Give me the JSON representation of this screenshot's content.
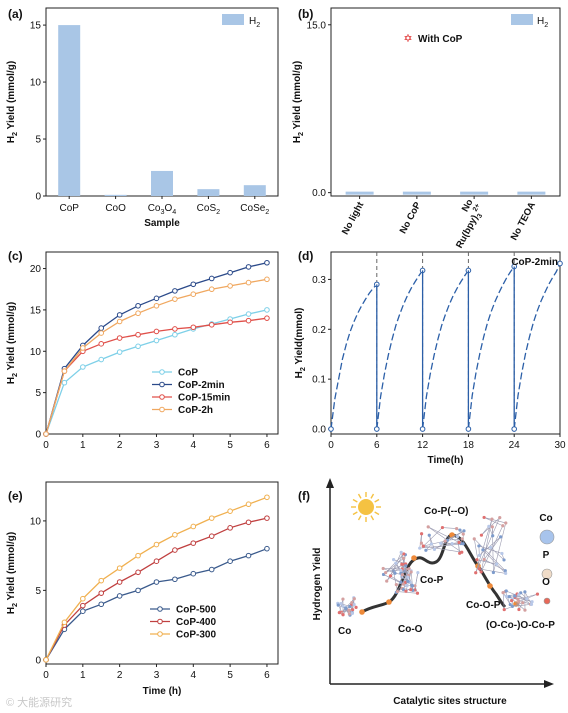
{
  "colors": {
    "bar": "#a9c6e6",
    "CoP": "#7ed0e8",
    "CoP-2min": "#2b4a8a",
    "CoP-15min": "#e0504a",
    "CoP-2h": "#f0a860",
    "d_line": "#2b5fa8",
    "CoP-500": "#3a5a8c",
    "CoP-400": "#c04040",
    "CoP-300": "#f0b050",
    "f_curve": "#333333",
    "f_dot": "#ee8a3a",
    "sun": "#f5c242"
  },
  "watermark": "© 大能源研究",
  "chart_data": [
    {
      "id": "a",
      "panel_label": "(a)",
      "type": "bar",
      "ylabel": "H₂ Yield (mmol/g)",
      "xlabel": "Sample",
      "legend": "H₂",
      "legend_position": "top-right",
      "categories": [
        "CoP",
        "CoO",
        "Co₃O₄",
        "CoS₂",
        "CoSe₂"
      ],
      "values": [
        15.0,
        0.1,
        2.2,
        0.6,
        0.95
      ],
      "ylim": [
        0,
        16.5
      ],
      "yticks": [
        "0",
        "5",
        "10",
        "15"
      ]
    },
    {
      "id": "b",
      "panel_label": "(b)",
      "type": "bar",
      "ylabel": "H₂ Yield (mmol/g)",
      "legend": "H₂",
      "legend_position": "top-right",
      "annotation": "With CoP",
      "annotation_value": 15.0,
      "categories": [
        "No light",
        "No CoP",
        "No\nRu(bpy)₃²⁺",
        "No TEOA"
      ],
      "values": [
        0,
        0,
        0,
        0
      ],
      "ylim": [
        -0.3,
        16.5
      ],
      "yticks": [
        "0.0",
        "15.0"
      ]
    },
    {
      "id": "c",
      "panel_label": "(c)",
      "type": "line",
      "ylabel": "H₂ Yield (mmol/g)",
      "legend_position": "bottom-center",
      "x": [
        0,
        0.5,
        1,
        1.5,
        2,
        2.5,
        3,
        3.5,
        4,
        4.5,
        5,
        5.5,
        6
      ],
      "xticks": [
        "0",
        "1",
        "2",
        "3",
        "4",
        "5",
        "6"
      ],
      "yticks": [
        "0",
        "5",
        "10",
        "15",
        "20"
      ],
      "xlim": [
        0,
        6.3
      ],
      "ylim": [
        0,
        22
      ],
      "series": [
        {
          "name": "CoP",
          "values": [
            0,
            6.2,
            8.1,
            9.0,
            9.9,
            10.6,
            11.3,
            12.0,
            12.7,
            13.3,
            13.9,
            14.5,
            15.0
          ]
        },
        {
          "name": "CoP-2min",
          "values": [
            0,
            7.9,
            10.7,
            12.8,
            14.4,
            15.5,
            16.4,
            17.3,
            18.1,
            18.8,
            19.5,
            20.2,
            20.7
          ]
        },
        {
          "name": "CoP-15min",
          "values": [
            0,
            7.6,
            10.0,
            10.9,
            11.6,
            12.0,
            12.4,
            12.7,
            12.9,
            13.2,
            13.5,
            13.7,
            14.0
          ]
        },
        {
          "name": "CoP-2h",
          "values": [
            0,
            7.6,
            10.4,
            12.2,
            13.6,
            14.6,
            15.5,
            16.3,
            16.9,
            17.5,
            17.9,
            18.3,
            18.7
          ]
        }
      ]
    },
    {
      "id": "d",
      "panel_label": "(d)",
      "type": "line",
      "annotation": "CoP-2min",
      "ylabel": "H₂ Yield(mmol)",
      "xlabel": "Time(h)",
      "xticks": [
        "0",
        "6",
        "12",
        "18",
        "24",
        "30"
      ],
      "yticks": [
        "0.0",
        "0.1",
        "0.2",
        "0.3"
      ],
      "xlim": [
        0,
        30
      ],
      "ylim": [
        -0.01,
        0.355
      ],
      "cycle_boundaries": [
        6,
        12,
        18,
        24
      ],
      "cycles": [
        {
          "x": [
            0,
            0.5,
            1,
            1.5,
            2,
            2.5,
            3,
            3.5,
            4,
            4.5,
            5,
            5.5,
            6
          ],
          "y": [
            0,
            0.06,
            0.1,
            0.14,
            0.17,
            0.195,
            0.215,
            0.232,
            0.247,
            0.26,
            0.272,
            0.282,
            0.29
          ]
        },
        {
          "x": [
            6,
            6.5,
            7,
            7.5,
            8,
            8.5,
            9,
            9.5,
            10,
            10.5,
            11,
            11.5,
            12
          ],
          "y": [
            0,
            0.065,
            0.11,
            0.148,
            0.18,
            0.208,
            0.23,
            0.25,
            0.267,
            0.282,
            0.295,
            0.307,
            0.318
          ]
        },
        {
          "x": [
            12,
            12.5,
            13,
            13.5,
            14,
            14.5,
            15,
            15.5,
            16,
            16.5,
            17,
            17.5,
            18
          ],
          "y": [
            0,
            0.065,
            0.11,
            0.148,
            0.18,
            0.208,
            0.23,
            0.25,
            0.267,
            0.282,
            0.295,
            0.307,
            0.318
          ]
        },
        {
          "x": [
            18,
            18.5,
            19,
            19.5,
            20,
            20.5,
            21,
            21.5,
            22,
            22.5,
            23,
            23.5,
            24
          ],
          "y": [
            0,
            0.067,
            0.113,
            0.152,
            0.185,
            0.213,
            0.236,
            0.256,
            0.273,
            0.289,
            0.303,
            0.315,
            0.326
          ]
        },
        {
          "x": [
            24,
            24.5,
            25,
            25.5,
            26,
            26.5,
            27,
            27.5,
            28,
            28.5,
            29,
            29.5,
            30
          ],
          "y": [
            0,
            0.067,
            0.113,
            0.152,
            0.185,
            0.213,
            0.236,
            0.256,
            0.273,
            0.289,
            0.303,
            0.315,
            0.332
          ]
        }
      ]
    },
    {
      "id": "e",
      "panel_label": "(e)",
      "type": "line",
      "ylabel": "H₂ Yield (mmol/g)",
      "xlabel": "Time (h)",
      "legend_position": "bottom-right",
      "x": [
        0,
        0.5,
        1,
        1.5,
        2,
        2.5,
        3,
        3.5,
        4,
        4.5,
        5,
        5.5,
        6
      ],
      "xticks": [
        "0",
        "1",
        "2",
        "3",
        "4",
        "5",
        "6"
      ],
      "yticks": [
        "0",
        "5",
        "10"
      ],
      "xlim": [
        0,
        6.3
      ],
      "ylim": [
        -0.3,
        12.8
      ],
      "series": [
        {
          "name": "CoP-500",
          "values": [
            0,
            2.2,
            3.5,
            4.0,
            4.6,
            5.0,
            5.6,
            5.8,
            6.2,
            6.5,
            7.1,
            7.5,
            8.0
          ]
        },
        {
          "name": "CoP-400",
          "values": [
            0,
            2.5,
            3.9,
            4.8,
            5.6,
            6.3,
            7.1,
            7.9,
            8.4,
            8.9,
            9.5,
            9.9,
            10.2
          ]
        },
        {
          "name": "CoP-300",
          "values": [
            0,
            2.7,
            4.4,
            5.7,
            6.6,
            7.5,
            8.3,
            9.0,
            9.6,
            10.2,
            10.7,
            11.2,
            11.7
          ]
        }
      ]
    },
    {
      "id": "f",
      "panel_label": "(f)",
      "type": "diagram",
      "ylabel": "Hydrogen Yield",
      "xlabel": "Catalytic sites structure",
      "points": [
        "Co",
        "Co-O",
        "Co-P",
        "Co-P(--O)",
        "Co-O-P",
        "(O-Co-)O-Co-P"
      ],
      "legend": [
        "Co",
        "P",
        "O"
      ]
    }
  ]
}
